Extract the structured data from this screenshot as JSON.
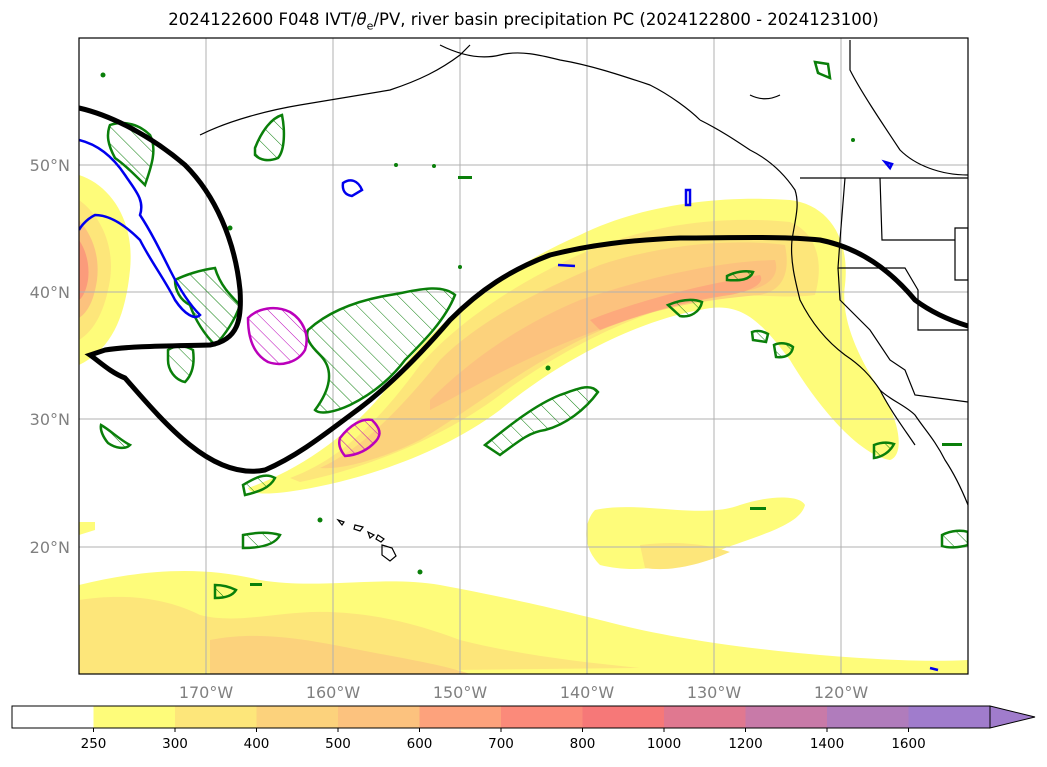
{
  "title": {
    "prefix": "2024122600 F048 IVT/",
    "theta": "θ",
    "theta_sub": "e",
    "suffix": "/PV, river basin precipitation PC (2024122800 - 2024123100)"
  },
  "map": {
    "lon_range": [
      -180,
      -110
    ],
    "lat_range": [
      10,
      60
    ],
    "grid": true,
    "lat_labels": [
      "20°N",
      "30°N",
      "40°N",
      "50°N"
    ],
    "lon_labels": [
      "170°W",
      "160°W",
      "150°W",
      "140°W",
      "130°W",
      "120°W"
    ],
    "fields": {
      "ivt_shading": "precipitation percentile / IVT filled contours (yellow-orange)",
      "theta_e_contour": "thick black contour",
      "pv_contours": [
        "green",
        "blue",
        "magenta"
      ]
    }
  },
  "colorbar": {
    "levels": [
      "250",
      "300",
      "400",
      "500",
      "600",
      "700",
      "800",
      "1000",
      "1200",
      "1400",
      "1600"
    ],
    "colors": [
      "#ffffff",
      "#fefc7a",
      "#fde67a",
      "#fcd27c",
      "#fcc27e",
      "#fda27c",
      "#fb8a7a",
      "#f67878",
      "#e07890",
      "#c87aa8",
      "#b07cbc",
      "#a07ccc"
    ],
    "extend": "max"
  }
}
